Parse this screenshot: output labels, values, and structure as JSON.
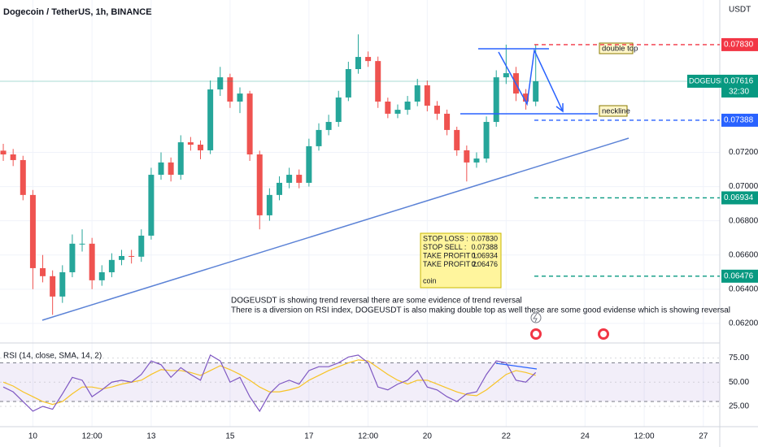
{
  "header": {
    "title": "Dogecoin / TetherUS, 1h, BINANCE",
    "currency": "USDT"
  },
  "chart_data": [
    {
      "type": "candlestick",
      "x": [
        6,
        12,
        18,
        24,
        30,
        36,
        42,
        48,
        54,
        60,
        66,
        72,
        78,
        84,
        90,
        96,
        102,
        108,
        114,
        120,
        126,
        132,
        138,
        144,
        150,
        156,
        162,
        168,
        174,
        180,
        186,
        192,
        198,
        204,
        210,
        216,
        222,
        228,
        234,
        240,
        246,
        252,
        258,
        264,
        270,
        276,
        282,
        288,
        294,
        300,
        306,
        312,
        318,
        324,
        330
      ],
      "open": [
        0.0721,
        0.07188,
        0.07155,
        0.06951,
        0.06523,
        0.06476,
        0.06357,
        0.06499,
        0.06666,
        0.06666,
        0.06452,
        0.06499,
        0.06571,
        0.06594,
        0.0659,
        0.06713,
        0.07069,
        0.07141,
        0.07069,
        0.07259,
        0.07245,
        0.07212,
        0.07568,
        0.07639,
        0.07497,
        0.07544,
        0.07188,
        0.06832,
        0.06951,
        0.07022,
        0.07069,
        0.07022,
        0.07236,
        0.07331,
        0.07378,
        0.07521,
        0.07687,
        0.07758,
        0.07734,
        0.07497,
        0.07426,
        0.07449,
        0.07497,
        0.07592,
        0.07473,
        0.07426,
        0.07331,
        0.07212,
        0.07141,
        0.07164,
        0.07378,
        0.07639,
        0.07663,
        0.07544,
        0.07497
      ],
      "high": [
        0.0725,
        0.0722,
        0.0718,
        0.0698,
        0.066,
        0.0651,
        0.0654,
        0.0672,
        0.0675,
        0.067,
        0.0654,
        0.0661,
        0.0663,
        0.0663,
        0.0675,
        0.0711,
        0.072,
        0.0717,
        0.073,
        0.0729,
        0.0727,
        0.0762,
        0.077,
        0.0766,
        0.0758,
        0.0756,
        0.0721,
        0.0699,
        0.0706,
        0.0711,
        0.071,
        0.0728,
        0.0737,
        0.0742,
        0.0756,
        0.0773,
        0.0789,
        0.0779,
        0.0776,
        0.0752,
        0.0748,
        0.0753,
        0.0763,
        0.0762,
        0.075,
        0.0745,
        0.0735,
        0.0724,
        0.072,
        0.0741,
        0.0768,
        0.0783,
        0.077,
        0.0757,
        0.0783
      ],
      "low": [
        0.0715,
        0.0712,
        0.0692,
        0.064,
        0.0644,
        0.0625,
        0.0632,
        0.0647,
        0.0662,
        0.064,
        0.0642,
        0.0647,
        0.0654,
        0.0655,
        0.0656,
        0.0669,
        0.0704,
        0.0703,
        0.0704,
        0.0721,
        0.0716,
        0.0719,
        0.0753,
        0.0746,
        0.0743,
        0.0715,
        0.0675,
        0.068,
        0.0692,
        0.0699,
        0.0699,
        0.07,
        0.0721,
        0.073,
        0.0735,
        0.075,
        0.0766,
        0.077,
        0.0746,
        0.074,
        0.074,
        0.0742,
        0.0747,
        0.0744,
        0.0739,
        0.073,
        0.0718,
        0.0703,
        0.0711,
        0.0714,
        0.0735,
        0.076,
        0.075,
        0.0745,
        0.0747
      ],
      "close": [
        0.07188,
        0.07155,
        0.06951,
        0.06523,
        0.06476,
        0.06357,
        0.06499,
        0.06666,
        0.06666,
        0.06452,
        0.06499,
        0.06571,
        0.06594,
        0.0659,
        0.06713,
        0.07069,
        0.07141,
        0.07069,
        0.07259,
        0.07245,
        0.07212,
        0.07568,
        0.07639,
        0.07497,
        0.07544,
        0.07188,
        0.06832,
        0.06951,
        0.07022,
        0.07069,
        0.07022,
        0.07236,
        0.07331,
        0.07378,
        0.07521,
        0.07687,
        0.07758,
        0.07734,
        0.07497,
        0.07426,
        0.07449,
        0.07497,
        0.07592,
        0.07473,
        0.07426,
        0.07331,
        0.07212,
        0.07141,
        0.07164,
        0.07378,
        0.07639,
        0.07663,
        0.07544,
        0.07497,
        0.07616
      ],
      "up_color": "#26a69a",
      "down_color": "#ef5350",
      "xlim": [
        4,
        442
      ],
      "ylim": [
        0.06095,
        0.08091
      ],
      "xticks": [
        {
          "value": 24,
          "label": "10"
        },
        {
          "value": 60,
          "label": "12:00"
        },
        {
          "value": 96,
          "label": "13"
        },
        {
          "value": 144,
          "label": "15"
        },
        {
          "value": 192,
          "label": "17"
        },
        {
          "value": 228,
          "label": "12:00"
        },
        {
          "value": 264,
          "label": "20"
        },
        {
          "value": 312,
          "label": "22"
        },
        {
          "value": 360,
          "label": "24"
        },
        {
          "value": 396,
          "label": "12:00"
        },
        {
          "value": 432,
          "label": "27"
        }
      ],
      "yticks": [
        {
          "value": 0.062,
          "label": "0.06200"
        },
        {
          "value": 0.064,
          "label": "0.06400"
        },
        {
          "value": 0.066,
          "label": "0.06600"
        },
        {
          "value": 0.068,
          "label": "0.06800"
        },
        {
          "value": 0.07,
          "label": "0.07000"
        },
        {
          "value": 0.072,
          "label": "0.07200"
        }
      ],
      "grid": true,
      "levels": [
        {
          "value": 0.0783,
          "label": "0.07830",
          "color": "#f23645"
        },
        {
          "value": 0.07388,
          "label": "0.07388",
          "color": "#2962ff"
        },
        {
          "value": 0.06934,
          "label": "0.06934",
          "color": "#089981"
        },
        {
          "value": 0.06476,
          "label": "0.06476",
          "color": "#089981"
        }
      ],
      "last": {
        "value": 0.07616,
        "label": "0.07616",
        "symbol": "DOGEUSDT",
        "countdown": "32:30",
        "color": "#089981"
      },
      "annotations": {
        "double_top": "double top",
        "neckline": "neckline",
        "note": [
          "DOGEUSDT is showing trend reversal there are some evidence of trend reversal",
          "There is a diversion on RSI index, DOGEUSDT is also making double top as well these are some good evidense which is showing reversal"
        ],
        "plan": {
          "rows": [
            [
              "STOP LOSS :",
              "0.07830"
            ],
            [
              "STOP SELL :",
              "0.07388"
            ],
            [
              "TAKE PROFIT 1:",
              "0.06934"
            ],
            [
              "TAKE PROFIT 2:",
              "0.06476"
            ]
          ],
          "footer": "coin"
        }
      }
    },
    {
      "type": "line",
      "title": "RSI (14, close, SMA, 14, 2)",
      "series": [
        {
          "name": "RSI",
          "color": "#7e57c2",
          "values": [
            45,
            40,
            30,
            20,
            25,
            22,
            38,
            55,
            52,
            35,
            42,
            50,
            52,
            50,
            58,
            72,
            68,
            55,
            65,
            58,
            52,
            78,
            72,
            50,
            55,
            35,
            20,
            38,
            48,
            52,
            48,
            62,
            66,
            66,
            70,
            76,
            78,
            70,
            45,
            42,
            48,
            52,
            62,
            45,
            42,
            35,
            30,
            38,
            40,
            58,
            72,
            70,
            52,
            50,
            60
          ]
        },
        {
          "name": "SMA",
          "color": "#f7c325",
          "values": [
            50,
            46,
            40,
            35,
            30,
            27,
            30,
            38,
            45,
            45,
            43,
            45,
            48,
            50,
            52,
            58,
            63,
            62,
            62,
            60,
            57,
            62,
            67,
            63,
            58,
            52,
            45,
            40,
            40,
            42,
            45,
            52,
            57,
            62,
            66,
            70,
            73,
            72,
            65,
            58,
            52,
            48,
            52,
            52,
            48,
            44,
            40,
            37,
            36,
            42,
            50,
            58,
            62,
            60,
            57
          ]
        }
      ],
      "ylim": [
        4,
        88
      ],
      "yticks": [
        {
          "value": 75,
          "label": "75.00"
        },
        {
          "value": 50,
          "label": "50.00"
        },
        {
          "value": 25,
          "label": "25.00"
        }
      ],
      "bands": [
        30,
        70
      ]
    }
  ]
}
